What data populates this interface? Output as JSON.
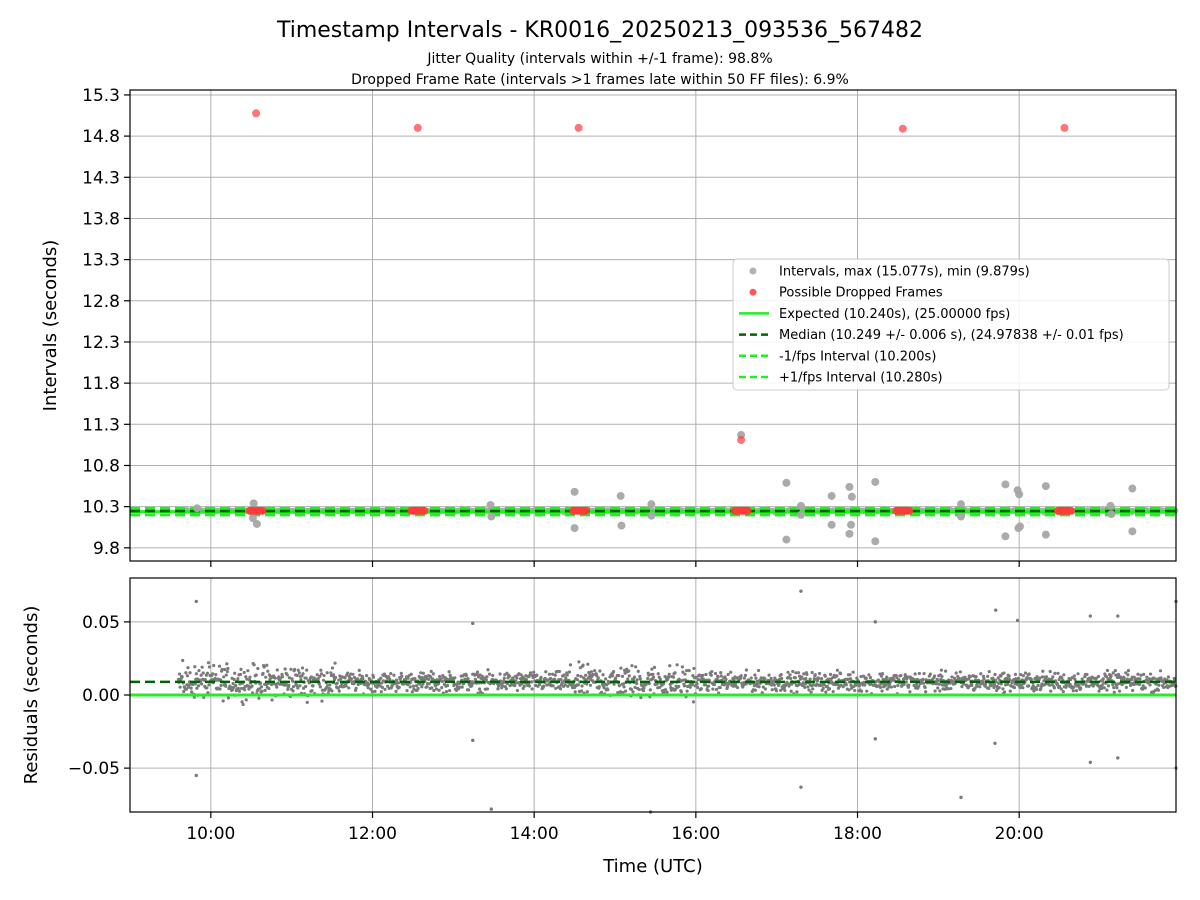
{
  "chart_data": {
    "title": "Timestamp Intervals - KR0016_20250213_093536_567482",
    "subtitle_lines": [
      "Jitter Quality (intervals within +/-1 frame): 98.8%",
      "Dropped Frame Rate (intervals >1 frames late within 50 FF files): 6.9%"
    ],
    "xlabel": "Time (UTC)",
    "xlim_hours": [
      9.0,
      21.94
    ],
    "x_ticks": [
      {
        "value": 10,
        "label": "10:00"
      },
      {
        "value": 12,
        "label": "12:00"
      },
      {
        "value": 14,
        "label": "14:00"
      },
      {
        "value": 16,
        "label": "16:00"
      },
      {
        "value": 18,
        "label": "18:00"
      },
      {
        "value": 20,
        "label": "20:00"
      }
    ],
    "grid": true,
    "top_panel": {
      "type": "scatter",
      "ylabel": "Intervals (seconds)",
      "ylim": [
        9.64,
        15.36
      ],
      "y_ticks": [
        {
          "value": 9.8,
          "label": "9.8"
        },
        {
          "value": 10.3,
          "label": "10.3"
        },
        {
          "value": 10.8,
          "label": "10.8"
        },
        {
          "value": 11.3,
          "label": "11.3"
        },
        {
          "value": 11.8,
          "label": "11.8"
        },
        {
          "value": 12.3,
          "label": "12.3"
        },
        {
          "value": 12.8,
          "label": "12.8"
        },
        {
          "value": 13.3,
          "label": "13.3"
        },
        {
          "value": 13.8,
          "label": "13.8"
        },
        {
          "value": 14.3,
          "label": "14.3"
        },
        {
          "value": 14.8,
          "label": "14.8"
        },
        {
          "value": 15.3,
          "label": "15.3"
        }
      ],
      "legend_position": "center-right",
      "series": [
        {
          "name": "Intervals, max (15.077s), min (9.879s)",
          "kind": "scatter",
          "color": "#a6a6a6",
          "points": [
            [
              9.83,
              10.28
            ],
            [
              10.53,
              10.34
            ],
            [
              10.57,
              10.09
            ],
            [
              10.52,
              10.16
            ],
            [
              13.46,
              10.32
            ],
            [
              13.47,
              10.18
            ],
            [
              14.5,
              10.48
            ],
            [
              14.5,
              10.04
            ],
            [
              15.07,
              10.43
            ],
            [
              15.08,
              10.07
            ],
            [
              15.45,
              10.33
            ],
            [
              15.45,
              10.19
            ],
            [
              16.56,
              11.17
            ],
            [
              17.12,
              10.59
            ],
            [
              17.12,
              9.9
            ],
            [
              17.3,
              10.31
            ],
            [
              17.3,
              10.2
            ],
            [
              17.68,
              10.43
            ],
            [
              17.68,
              10.08
            ],
            [
              17.9,
              10.54
            ],
            [
              17.93,
              10.42
            ],
            [
              17.92,
              10.08
            ],
            [
              17.9,
              9.97
            ],
            [
              18.22,
              10.6
            ],
            [
              18.22,
              9.88
            ],
            [
              19.28,
              10.33
            ],
            [
              19.28,
              10.18
            ],
            [
              19.83,
              10.57
            ],
            [
              19.83,
              9.94
            ],
            [
              19.98,
              10.5
            ],
            [
              20.0,
              10.45
            ],
            [
              20.01,
              10.06
            ],
            [
              19.99,
              10.04
            ],
            [
              20.33,
              10.55
            ],
            [
              20.33,
              9.96
            ],
            [
              21.13,
              10.31
            ],
            [
              21.14,
              10.21
            ],
            [
              21.4,
              10.52
            ],
            [
              21.4,
              10.0
            ]
          ],
          "baseline_band": {
            "from": 9.6,
            "to": 21.94,
            "center": 10.249,
            "spread": 0.012
          }
        },
        {
          "name": "Possible Dropped Frames",
          "kind": "scatter",
          "color": "#ff3b3b",
          "points": [
            [
              10.56,
              15.077
            ],
            [
              12.56,
              14.9
            ],
            [
              14.55,
              14.9
            ],
            [
              16.56,
              11.11
            ],
            [
              18.56,
              14.89
            ],
            [
              20.56,
              14.9
            ]
          ],
          "clusters": [
            10.56,
            12.56,
            14.56,
            16.56,
            18.56,
            20.56
          ],
          "cluster_value": 10.25
        },
        {
          "name": "Expected (10.240s), (25.00000 fps)",
          "kind": "hline",
          "value": 10.24,
          "color": "#22ee22",
          "dash": "solid"
        },
        {
          "name": "Median (10.249 +/- 0.006 s), (24.97838 +/- 0.01 fps)",
          "kind": "hline",
          "value": 10.249,
          "color": "#006400",
          "dash": "dashed"
        },
        {
          "name": "-1/fps Interval (10.200s)",
          "kind": "hline",
          "value": 10.2,
          "color": "#22ee22",
          "dash": "dashed"
        },
        {
          "name": "+1/fps Interval (10.280s)",
          "kind": "hline",
          "value": 10.28,
          "color": "#22ee22",
          "dash": "dashed"
        }
      ]
    },
    "bottom_panel": {
      "type": "scatter",
      "ylabel": "Residuals (seconds)",
      "ylim": [
        -0.08,
        0.08
      ],
      "y_ticks": [
        {
          "value": 0.05,
          "label": "0.05"
        },
        {
          "value": 0.0,
          "label": "0.00"
        },
        {
          "value": -0.05,
          "label": "−0.05"
        }
      ],
      "expected_line": {
        "value": 0.0,
        "color": "#22ee22"
      },
      "median_line": {
        "value": 0.009,
        "color": "#006400"
      },
      "residual_color": "#7a7a7a",
      "residual_band": {
        "from": 9.6,
        "to": 21.94,
        "center": 0.009,
        "spread": 0.006
      },
      "outliers": [
        [
          9.82,
          0.064
        ],
        [
          9.82,
          -0.055
        ],
        [
          13.24,
          0.049
        ],
        [
          13.24,
          -0.031
        ],
        [
          13.47,
          -0.078
        ],
        [
          15.44,
          -0.08
        ],
        [
          17.3,
          0.071
        ],
        [
          17.3,
          -0.063
        ],
        [
          18.22,
          0.05
        ],
        [
          18.22,
          -0.03
        ],
        [
          19.28,
          -0.07
        ],
        [
          19.71,
          0.058
        ],
        [
          19.7,
          -0.033
        ],
        [
          19.98,
          0.051
        ],
        [
          20.88,
          0.054
        ],
        [
          20.88,
          -0.046
        ],
        [
          21.22,
          0.054
        ],
        [
          21.22,
          -0.043
        ],
        [
          21.94,
          0.064
        ],
        [
          21.94,
          -0.05
        ]
      ]
    }
  }
}
